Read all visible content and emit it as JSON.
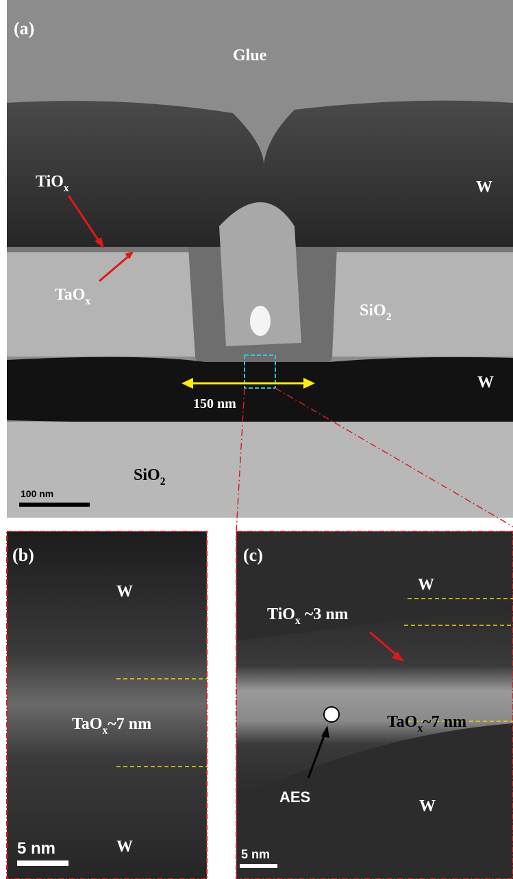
{
  "labels": [
    {
      "main": "(a)"
    },
    {
      "main": "Glue"
    },
    {
      "main": "TiO",
      "sub": "x"
    },
    {
      "main": "W"
    },
    {
      "main": "TaO",
      "sub": "x"
    },
    {
      "main": "SiO",
      "sub": "2"
    },
    {
      "main": "W"
    },
    {
      "main": "150 nm"
    },
    {
      "main": "SiO",
      "sub": "2"
    },
    {
      "main": "100 nm"
    },
    {
      "main": "(b)"
    },
    {
      "main": "W"
    },
    {
      "main": "TaO",
      "sub": "x",
      "after": "~7 nm"
    },
    {
      "main": "W"
    },
    {
      "main": "5 nm"
    },
    {
      "main": "(c)"
    },
    {
      "main": "W"
    },
    {
      "main": "TiO",
      "sub": "x",
      "after": " ~3 nm"
    },
    {
      "main": "TaO",
      "sub": "x",
      "after": "~7 nm"
    },
    {
      "main": "AES"
    },
    {
      "main": "W"
    },
    {
      "main": "5 nm"
    }
  ]
}
